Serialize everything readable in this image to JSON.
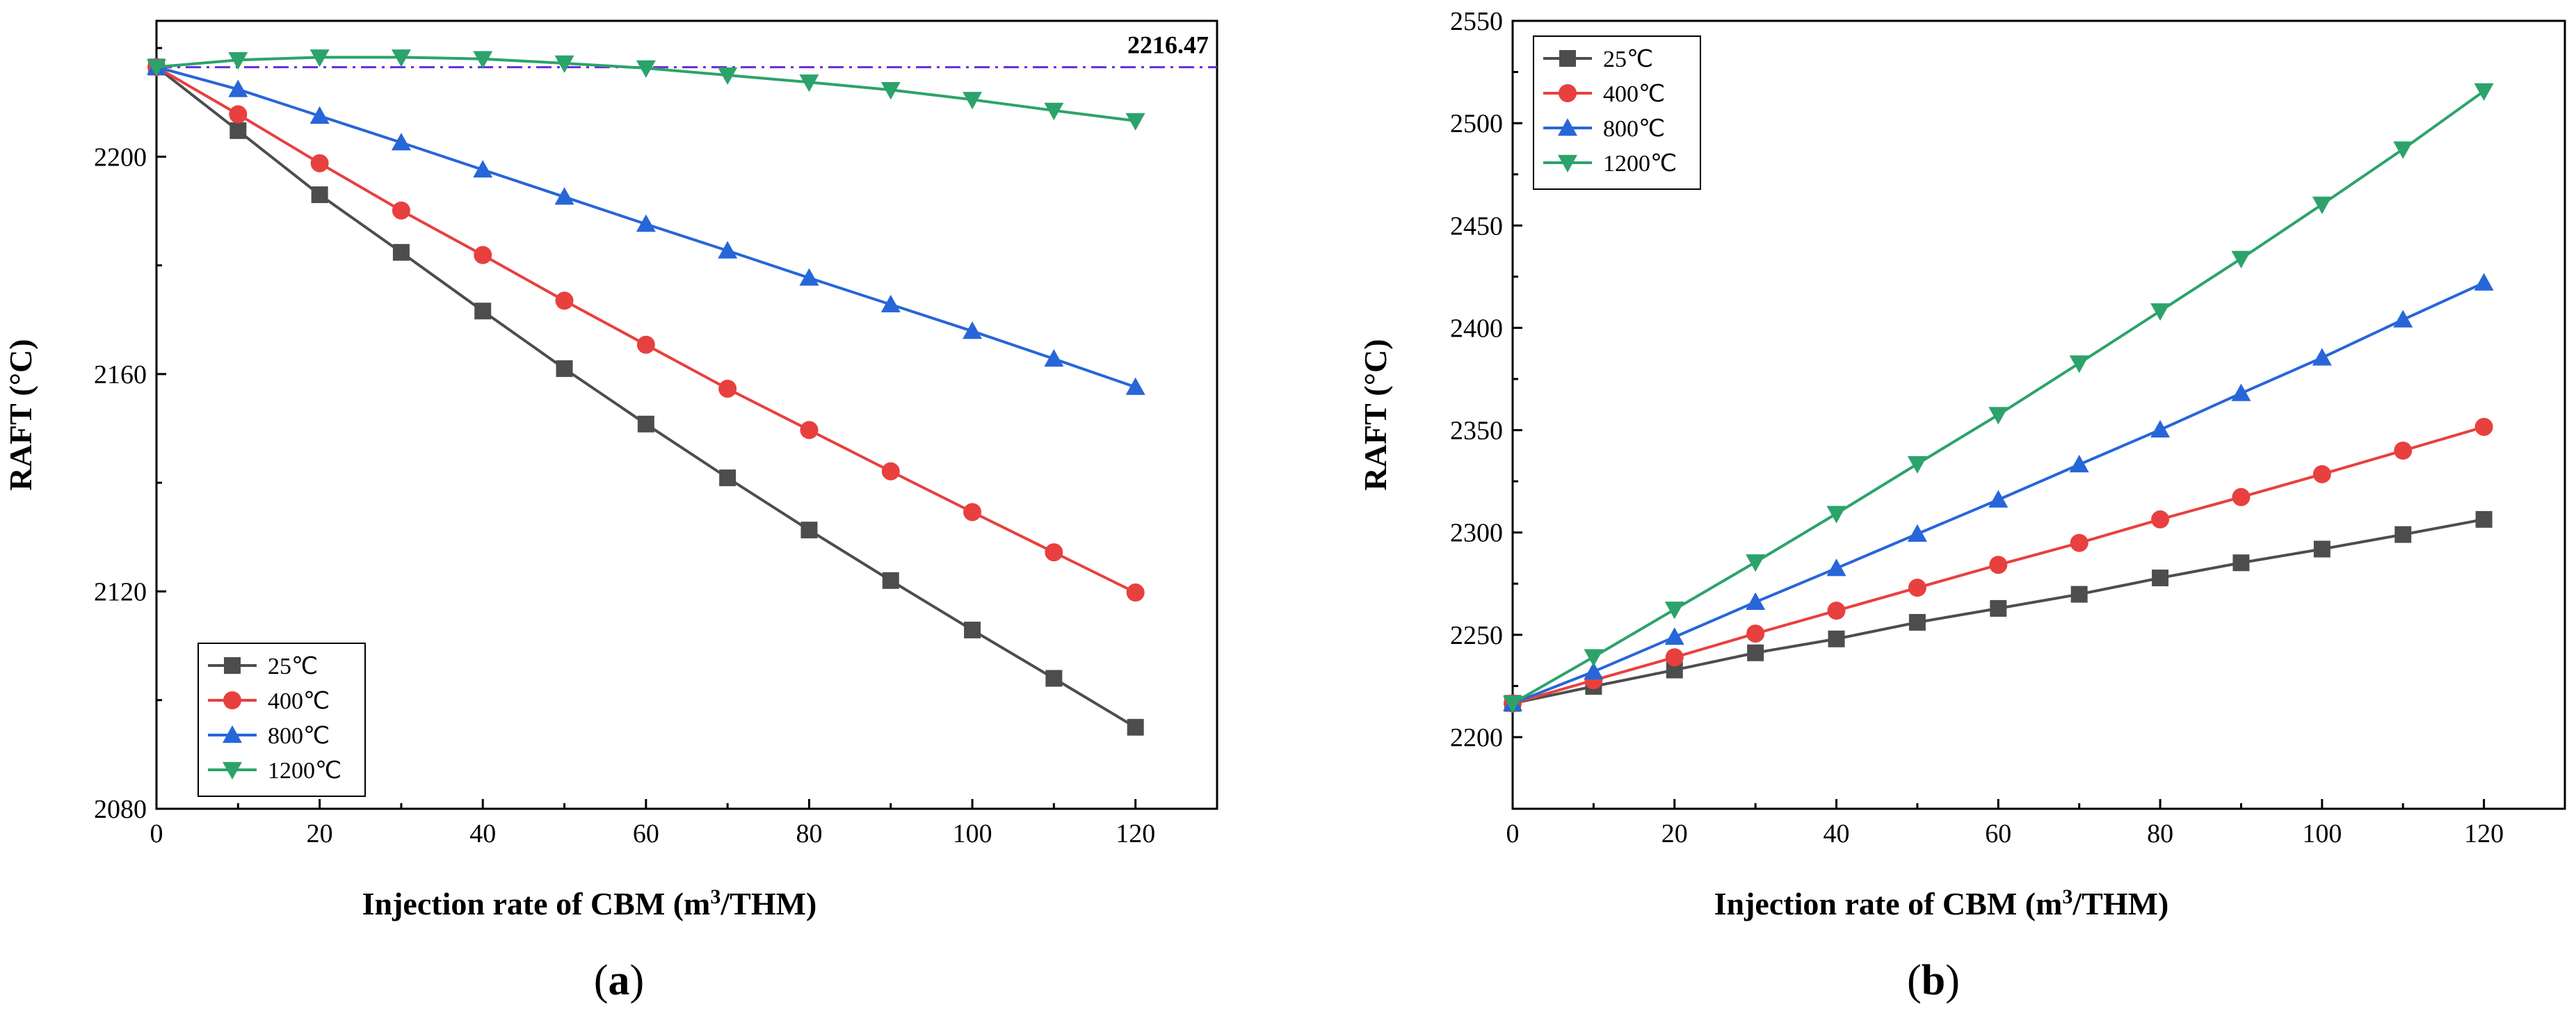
{
  "chart_data": [
    {
      "type": "line",
      "caption": "a",
      "xlabel": "Injection rate of CBM (m",
      "xlabel_sup": "3",
      "xlabel_tail": "/THM)",
      "ylabel": "RAFT (°C)",
      "xlim": [
        0,
        130
      ],
      "ylim": [
        2080,
        2225
      ],
      "xticks": [
        0,
        20,
        40,
        60,
        80,
        100,
        120
      ],
      "yticks": [
        2080,
        2120,
        2160,
        2200
      ],
      "legend_position": "bottom-left",
      "reference_line": {
        "y": 2216.47,
        "label": "2216.47",
        "color": "#6a2bd9"
      },
      "x": [
        0,
        10,
        20,
        30,
        40,
        50,
        60,
        70,
        80,
        90,
        100,
        110,
        120
      ],
      "series": [
        {
          "name": "25℃",
          "color": "#4d4d4d",
          "marker": "square",
          "values": [
            2216.5,
            2204.8,
            2193.0,
            2182.4,
            2171.6,
            2161.0,
            2150.8,
            2140.9,
            2131.3,
            2122.0,
            2112.9,
            2104.0,
            2095.0
          ]
        },
        {
          "name": "400℃",
          "color": "#e8403e",
          "marker": "circle",
          "values": [
            2216.5,
            2207.8,
            2198.8,
            2190.1,
            2181.9,
            2173.5,
            2165.4,
            2157.3,
            2149.7,
            2142.1,
            2134.6,
            2127.2,
            2119.8
          ]
        },
        {
          "name": "800℃",
          "color": "#2766d9",
          "marker": "triangle-up",
          "values": [
            2216.5,
            2212.4,
            2207.5,
            2202.6,
            2197.6,
            2192.6,
            2187.6,
            2182.7,
            2177.7,
            2172.8,
            2167.9,
            2162.8,
            2157.6
          ]
        },
        {
          "name": "1200℃",
          "color": "#2ca36b",
          "marker": "triangle-down",
          "values": [
            2216.5,
            2217.8,
            2218.3,
            2218.3,
            2218.0,
            2217.2,
            2216.3,
            2215.0,
            2213.7,
            2212.3,
            2210.5,
            2208.5,
            2206.6
          ]
        }
      ]
    },
    {
      "type": "line",
      "caption": "b",
      "xlabel": "Injection rate of CBM (m",
      "xlabel_sup": "3",
      "xlabel_tail": "/THM)",
      "ylabel": "RAFT (°C)",
      "xlim": [
        0,
        130
      ],
      "ylim": [
        2165,
        2550
      ],
      "xticks": [
        0,
        20,
        40,
        60,
        80,
        100,
        120
      ],
      "yticks": [
        2200,
        2250,
        2300,
        2350,
        2400,
        2450,
        2500,
        2550
      ],
      "legend_position": "top-left",
      "x": [
        0,
        10,
        20,
        30,
        40,
        50,
        60,
        70,
        80,
        90,
        100,
        110,
        120
      ],
      "series": [
        {
          "name": "25℃",
          "color": "#4d4d4d",
          "marker": "square",
          "values": [
            2216.5,
            2224.8,
            2232.8,
            2241.2,
            2248.0,
            2256.1,
            2262.9,
            2269.8,
            2277.8,
            2285.2,
            2291.9,
            2299.0,
            2306.4
          ]
        },
        {
          "name": "400℃",
          "color": "#e8403e",
          "marker": "circle",
          "values": [
            2216.5,
            2227.8,
            2239.0,
            2250.6,
            2261.8,
            2273.0,
            2284.2,
            2294.9,
            2306.4,
            2317.3,
            2328.5,
            2340.0,
            2351.6
          ]
        },
        {
          "name": "800℃",
          "color": "#2766d9",
          "marker": "triangle-up",
          "values": [
            2216.5,
            2232.0,
            2248.9,
            2266.0,
            2282.5,
            2299.3,
            2316.0,
            2333.2,
            2350.2,
            2368.0,
            2385.4,
            2404.0,
            2422.0
          ]
        },
        {
          "name": "1200℃",
          "color": "#2ca36b",
          "marker": "triangle-down",
          "values": [
            2216.5,
            2239.2,
            2262.4,
            2285.5,
            2309.2,
            2333.5,
            2357.5,
            2382.7,
            2408.2,
            2433.8,
            2460.3,
            2487.3,
            2515.7
          ]
        }
      ]
    }
  ]
}
